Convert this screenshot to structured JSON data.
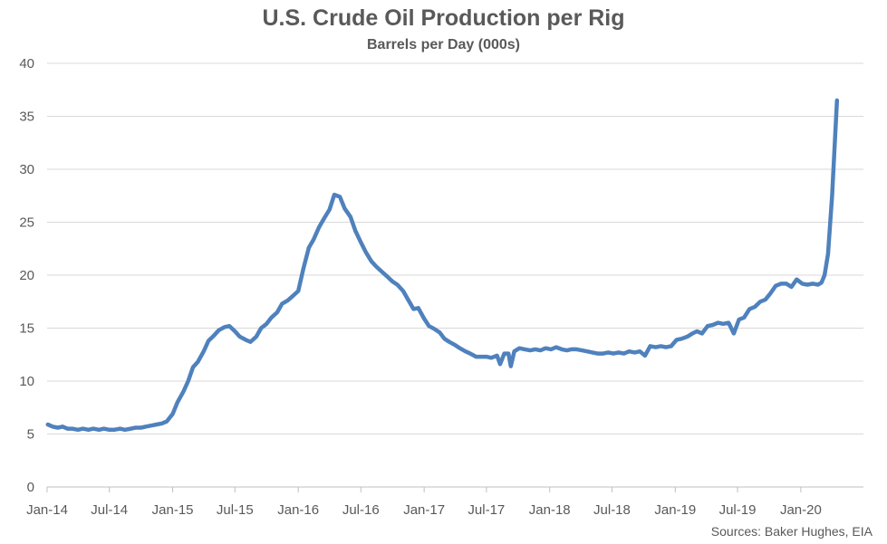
{
  "chart_data": {
    "type": "line",
    "title": "U.S. Crude Oil Production per Rig",
    "subtitle": "Barrels per Day (000s)",
    "xlabel": "",
    "ylabel": "",
    "ylim": [
      0,
      40
    ],
    "y_ticks": [
      0,
      5,
      10,
      15,
      20,
      25,
      30,
      35,
      40
    ],
    "x_ticks": [
      "Jan-14",
      "Jul-14",
      "Jan-15",
      "Jul-15",
      "Jan-16",
      "Jul-16",
      "Jan-17",
      "Jul-17",
      "Jan-18",
      "Jul-18",
      "Jan-19",
      "Jul-19",
      "Jan-20"
    ],
    "grid": true,
    "legend": "none",
    "source": "Sources: Baker Hughes, EIA",
    "line_color": "#4f81bd",
    "series": [
      {
        "values": [
          [
            "2014-01-03",
            5.9
          ],
          [
            "2014-01-17",
            5.7
          ],
          [
            "2014-02-01",
            5.6
          ],
          [
            "2014-02-15",
            5.7
          ],
          [
            "2014-03-01",
            5.5
          ],
          [
            "2014-03-15",
            5.5
          ],
          [
            "2014-04-01",
            5.4
          ],
          [
            "2014-04-15",
            5.5
          ],
          [
            "2014-05-01",
            5.4
          ],
          [
            "2014-05-15",
            5.5
          ],
          [
            "2014-06-01",
            5.4
          ],
          [
            "2014-06-15",
            5.5
          ],
          [
            "2014-07-01",
            5.4
          ],
          [
            "2014-07-15",
            5.4
          ],
          [
            "2014-08-01",
            5.5
          ],
          [
            "2014-08-15",
            5.4
          ],
          [
            "2014-09-01",
            5.5
          ],
          [
            "2014-09-15",
            5.6
          ],
          [
            "2014-10-01",
            5.6
          ],
          [
            "2014-10-15",
            5.7
          ],
          [
            "2014-11-01",
            5.8
          ],
          [
            "2014-11-15",
            5.9
          ],
          [
            "2014-12-01",
            6.0
          ],
          [
            "2014-12-15",
            6.2
          ],
          [
            "2015-01-01",
            6.9
          ],
          [
            "2015-01-15",
            8.0
          ],
          [
            "2015-02-01",
            9.0
          ],
          [
            "2015-02-15",
            10.0
          ],
          [
            "2015-03-01",
            11.3
          ],
          [
            "2015-03-15",
            11.8
          ],
          [
            "2015-04-01",
            12.8
          ],
          [
            "2015-04-15",
            13.8
          ],
          [
            "2015-05-01",
            14.3
          ],
          [
            "2015-05-15",
            14.8
          ],
          [
            "2015-06-01",
            15.1
          ],
          [
            "2015-06-15",
            15.2
          ],
          [
            "2015-07-01",
            14.7
          ],
          [
            "2015-07-15",
            14.2
          ],
          [
            "2015-08-01",
            13.9
          ],
          [
            "2015-08-15",
            13.7
          ],
          [
            "2015-09-01",
            14.2
          ],
          [
            "2015-09-15",
            15.0
          ],
          [
            "2015-10-01",
            15.4
          ],
          [
            "2015-10-15",
            16.0
          ],
          [
            "2015-11-01",
            16.5
          ],
          [
            "2015-11-15",
            17.3
          ],
          [
            "2015-12-01",
            17.6
          ],
          [
            "2015-12-15",
            18.0
          ],
          [
            "2016-01-01",
            18.5
          ],
          [
            "2016-01-15",
            20.5
          ],
          [
            "2016-02-01",
            22.6
          ],
          [
            "2016-02-15",
            23.4
          ],
          [
            "2016-03-01",
            24.5
          ],
          [
            "2016-03-15",
            25.3
          ],
          [
            "2016-04-01",
            26.2
          ],
          [
            "2016-04-15",
            27.6
          ],
          [
            "2016-05-01",
            27.4
          ],
          [
            "2016-05-15",
            26.3
          ],
          [
            "2016-06-01",
            25.5
          ],
          [
            "2016-06-15",
            24.2
          ],
          [
            "2016-07-01",
            23.1
          ],
          [
            "2016-07-15",
            22.2
          ],
          [
            "2016-08-01",
            21.3
          ],
          [
            "2016-08-15",
            20.8
          ],
          [
            "2016-09-01",
            20.3
          ],
          [
            "2016-09-15",
            19.9
          ],
          [
            "2016-10-01",
            19.4
          ],
          [
            "2016-10-15",
            19.1
          ],
          [
            "2016-11-01",
            18.5
          ],
          [
            "2016-11-15",
            17.7
          ],
          [
            "2016-12-01",
            16.8
          ],
          [
            "2016-12-15",
            16.9
          ],
          [
            "2017-01-01",
            15.9
          ],
          [
            "2017-01-15",
            15.2
          ],
          [
            "2017-02-01",
            14.9
          ],
          [
            "2017-02-15",
            14.6
          ],
          [
            "2017-03-01",
            14.0
          ],
          [
            "2017-03-15",
            13.7
          ],
          [
            "2017-04-01",
            13.4
          ],
          [
            "2017-04-15",
            13.1
          ],
          [
            "2017-05-01",
            12.8
          ],
          [
            "2017-05-15",
            12.6
          ],
          [
            "2017-06-01",
            12.3
          ],
          [
            "2017-06-15",
            12.3
          ],
          [
            "2017-07-01",
            12.3
          ],
          [
            "2017-07-15",
            12.2
          ],
          [
            "2017-08-01",
            12.4
          ],
          [
            "2017-08-10",
            11.6
          ],
          [
            "2017-08-22",
            12.6
          ],
          [
            "2017-09-03",
            12.6
          ],
          [
            "2017-09-10",
            11.4
          ],
          [
            "2017-09-20",
            12.8
          ],
          [
            "2017-10-05",
            13.1
          ],
          [
            "2017-10-20",
            13.0
          ],
          [
            "2017-11-05",
            12.9
          ],
          [
            "2017-11-20",
            13.0
          ],
          [
            "2017-12-05",
            12.9
          ],
          [
            "2017-12-20",
            13.1
          ],
          [
            "2018-01-05",
            13.0
          ],
          [
            "2018-01-20",
            13.2
          ],
          [
            "2018-02-05",
            13.0
          ],
          [
            "2018-02-20",
            12.9
          ],
          [
            "2018-03-05",
            13.0
          ],
          [
            "2018-03-20",
            13.0
          ],
          [
            "2018-04-05",
            12.9
          ],
          [
            "2018-04-20",
            12.8
          ],
          [
            "2018-05-05",
            12.7
          ],
          [
            "2018-05-20",
            12.6
          ],
          [
            "2018-06-05",
            12.6
          ],
          [
            "2018-06-20",
            12.7
          ],
          [
            "2018-07-05",
            12.6
          ],
          [
            "2018-07-20",
            12.7
          ],
          [
            "2018-08-05",
            12.6
          ],
          [
            "2018-08-20",
            12.8
          ],
          [
            "2018-09-05",
            12.7
          ],
          [
            "2018-09-20",
            12.8
          ],
          [
            "2018-10-05",
            12.4
          ],
          [
            "2018-10-20",
            13.3
          ],
          [
            "2018-11-05",
            13.2
          ],
          [
            "2018-11-20",
            13.3
          ],
          [
            "2018-12-05",
            13.2
          ],
          [
            "2018-12-20",
            13.3
          ],
          [
            "2019-01-05",
            13.9
          ],
          [
            "2019-01-20",
            14.0
          ],
          [
            "2019-02-05",
            14.2
          ],
          [
            "2019-02-20",
            14.5
          ],
          [
            "2019-03-05",
            14.7
          ],
          [
            "2019-03-20",
            14.5
          ],
          [
            "2019-04-05",
            15.2
          ],
          [
            "2019-04-20",
            15.3
          ],
          [
            "2019-05-05",
            15.5
          ],
          [
            "2019-05-20",
            15.4
          ],
          [
            "2019-06-05",
            15.5
          ],
          [
            "2019-06-20",
            14.5
          ],
          [
            "2019-07-05",
            15.8
          ],
          [
            "2019-07-20",
            16.0
          ],
          [
            "2019-08-05",
            16.8
          ],
          [
            "2019-08-20",
            17.0
          ],
          [
            "2019-09-05",
            17.5
          ],
          [
            "2019-09-20",
            17.7
          ],
          [
            "2019-10-05",
            18.3
          ],
          [
            "2019-10-20",
            19.0
          ],
          [
            "2019-11-05",
            19.2
          ],
          [
            "2019-11-20",
            19.2
          ],
          [
            "2019-12-05",
            18.9
          ],
          [
            "2019-12-20",
            19.6
          ],
          [
            "2020-01-05",
            19.2
          ],
          [
            "2020-01-20",
            19.1
          ],
          [
            "2020-02-05",
            19.2
          ],
          [
            "2020-02-20",
            19.1
          ],
          [
            "2020-03-01",
            19.3
          ],
          [
            "2020-03-10",
            20.0
          ],
          [
            "2020-03-20",
            22.0
          ],
          [
            "2020-04-01",
            27.5
          ],
          [
            "2020-04-15",
            36.5
          ]
        ]
      }
    ]
  }
}
